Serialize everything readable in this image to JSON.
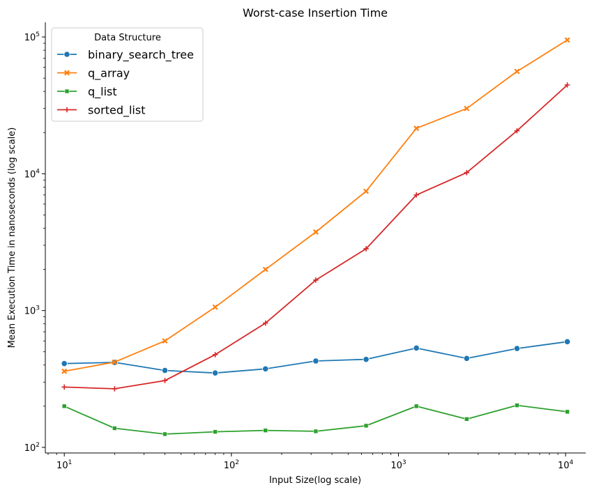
{
  "chart_data": {
    "type": "line",
    "title": "Worst-case Insertion Time",
    "xlabel": "Input Size(log scale)",
    "ylabel": "Mean Execution Time in nanoseconds (log scale)",
    "xscale": "log",
    "yscale": "log",
    "xlim": [
      7.7,
      13200
    ],
    "ylim": [
      91,
      128000
    ],
    "grid": false,
    "x": [
      10,
      20,
      40,
      80,
      160,
      320,
      640,
      1280,
      2560,
      5120,
      10240
    ],
    "x_ticks": [
      {
        "value": 10,
        "base": "10",
        "exp": "1"
      },
      {
        "value": 100,
        "base": "10",
        "exp": "2"
      },
      {
        "value": 1000,
        "base": "10",
        "exp": "3"
      },
      {
        "value": 10000,
        "base": "10",
        "exp": "4"
      }
    ],
    "y_ticks": [
      {
        "value": 100,
        "base": "10",
        "exp": "2"
      },
      {
        "value": 1000,
        "base": "10",
        "exp": "3"
      },
      {
        "value": 10000,
        "base": "10",
        "exp": "4"
      },
      {
        "value": 100000,
        "base": "10",
        "exp": "5"
      }
    ],
    "legend": {
      "title": "Data Structure",
      "placement": "top-left"
    },
    "series": [
      {
        "name": "binary_search_tree",
        "color": "#1f77b4",
        "marker": "circle",
        "values": [
          410,
          418,
          365,
          350,
          375,
          428,
          440,
          532,
          447,
          528,
          592
        ]
      },
      {
        "name": "q_array",
        "color": "#ff7f0e",
        "marker": "x",
        "values": [
          360,
          420,
          600,
          1060,
          2000,
          3750,
          7450,
          21500,
          30000,
          56000,
          95000
        ]
      },
      {
        "name": "q_list",
        "color": "#2ca02c",
        "marker": "square",
        "values": [
          200,
          138,
          125,
          130,
          133,
          131,
          144,
          200,
          161,
          203,
          182
        ]
      },
      {
        "name": "sorted_list",
        "color": "#d62728",
        "marker": "plus",
        "values": [
          276,
          268,
          308,
          476,
          810,
          1670,
          2830,
          7000,
          10200,
          20600,
          44600
        ]
      }
    ]
  }
}
